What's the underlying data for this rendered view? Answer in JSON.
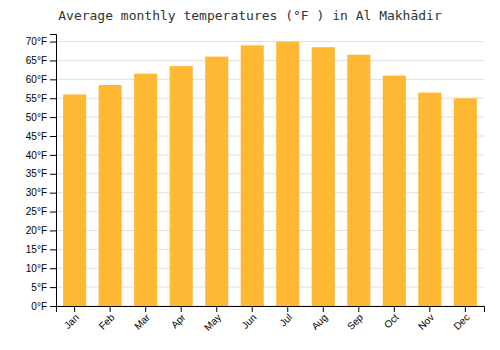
{
  "chart_data": {
    "type": "bar",
    "title": "Average monthly temperatures (°F ) in Al Makhādir",
    "categories": [
      "Jan",
      "Feb",
      "Mar",
      "Apr",
      "May",
      "Jun",
      "Jul",
      "Aug",
      "Sep",
      "Oct",
      "Nov",
      "Dec"
    ],
    "values": [
      56.0,
      58.5,
      61.5,
      63.5,
      66.0,
      69.0,
      70.0,
      68.5,
      66.5,
      61.0,
      56.5,
      55.0
    ],
    "color": "#FFB833",
    "ylim": [
      0,
      72
    ],
    "yticks": [
      {
        "value": 0,
        "label": "0°F"
      },
      {
        "value": 5,
        "label": "5°F"
      },
      {
        "value": 10,
        "label": "10°F"
      },
      {
        "value": 15,
        "label": "15°F"
      },
      {
        "value": 20,
        "label": "20°F"
      },
      {
        "value": 25,
        "label": "25°F"
      },
      {
        "value": 30,
        "label": "30°F"
      },
      {
        "value": 35,
        "label": "35°F"
      },
      {
        "value": 40,
        "label": "40°F"
      },
      {
        "value": 45,
        "label": "45°F"
      },
      {
        "value": 50,
        "label": "50°F"
      },
      {
        "value": 55,
        "label": "55°F"
      },
      {
        "value": 60,
        "label": "60°F"
      },
      {
        "value": 65,
        "label": "65°F"
      },
      {
        "value": 70,
        "label": "70°F"
      }
    ],
    "grid": true
  }
}
